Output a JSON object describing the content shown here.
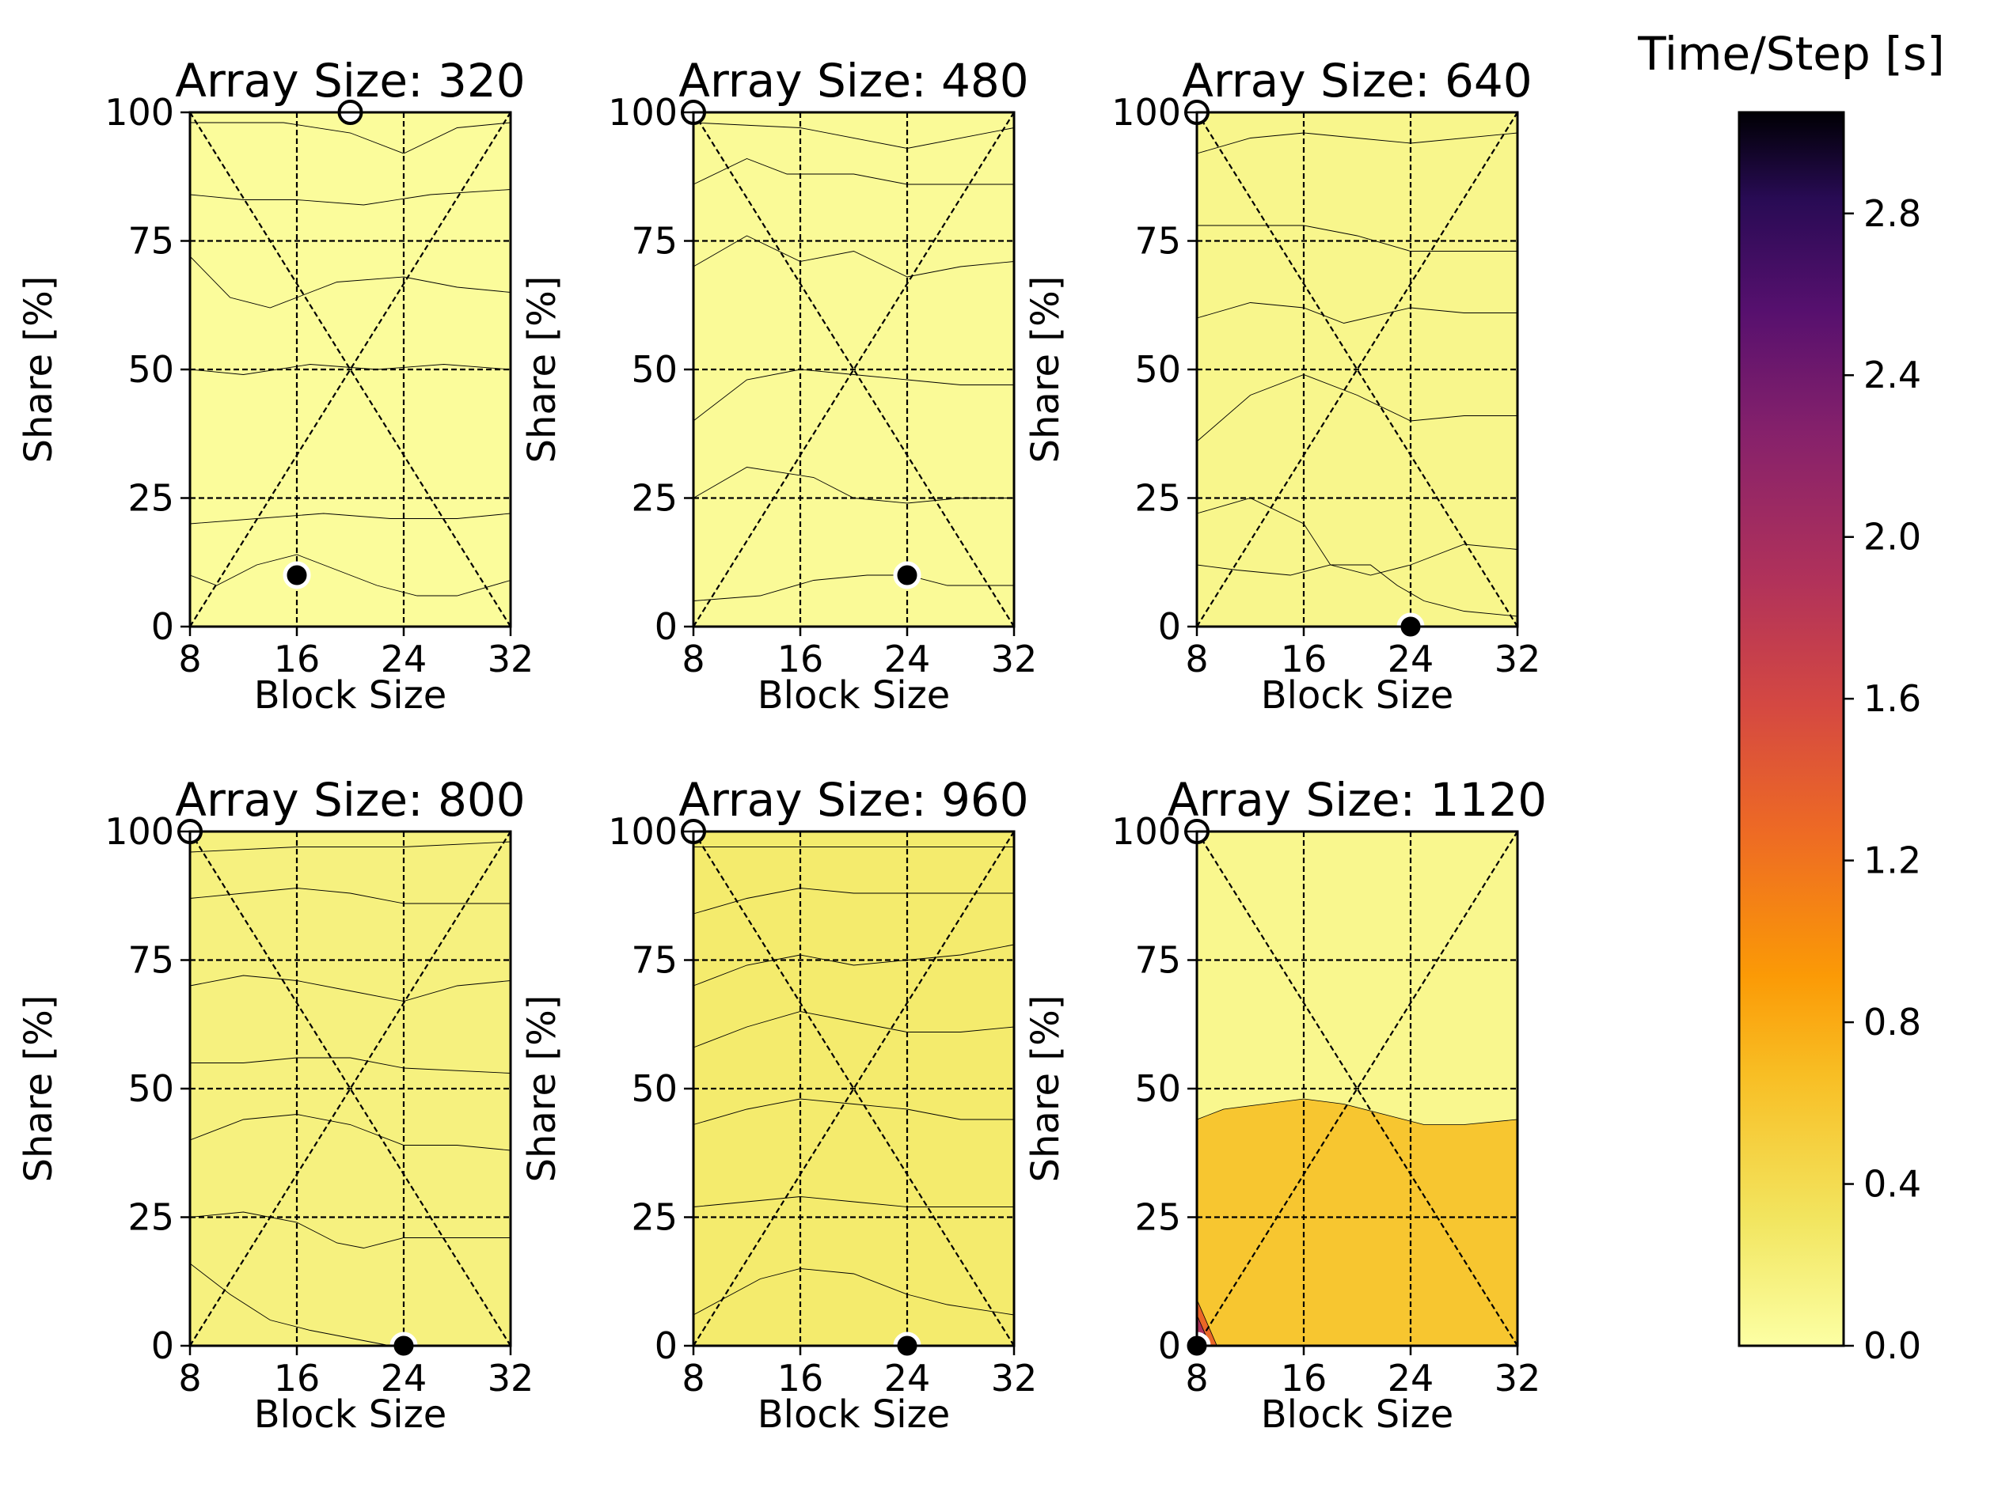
{
  "chart_data": {
    "type": "heatmap",
    "subtype": "contour",
    "colorbar": {
      "title": "Time/Step [s]",
      "colormap": "inferno_r",
      "range": [
        0.0,
        3.05
      ],
      "ticks": [
        0.0,
        0.4,
        0.8,
        1.2,
        1.6,
        2.0,
        2.4,
        2.8
      ],
      "tick_labels": [
        "0.0",
        "0.4",
        "0.8",
        "1.2",
        "1.6",
        "2.0",
        "2.4",
        "2.8"
      ]
    },
    "panels": [
      {
        "title": "Array Size: 320",
        "xlabel": "Block Size",
        "ylabel": "Share [%]",
        "xlim": [
          8,
          32
        ],
        "ylim": [
          0,
          100
        ],
        "xticks": [
          "8",
          "16",
          "24",
          "32"
        ],
        "yticks": [
          "0",
          "25",
          "50",
          "75",
          "100"
        ],
        "fill_value": 0.04,
        "level_curves": [
          [
            [
              8,
              10
            ],
            [
              10,
              8
            ],
            [
              13,
              12
            ],
            [
              16,
              14
            ],
            [
              19,
              11
            ],
            [
              22,
              8
            ],
            [
              25,
              6
            ],
            [
              28,
              6
            ],
            [
              32,
              9
            ]
          ],
          [
            [
              8,
              20
            ],
            [
              13,
              21
            ],
            [
              18,
              22
            ],
            [
              23,
              21
            ],
            [
              28,
              21
            ],
            [
              32,
              22
            ]
          ],
          [
            [
              8,
              50
            ],
            [
              12,
              49
            ],
            [
              17,
              51
            ],
            [
              22,
              50
            ],
            [
              27,
              51
            ],
            [
              32,
              50
            ]
          ],
          [
            [
              8,
              72
            ],
            [
              11,
              64
            ],
            [
              14,
              62
            ],
            [
              19,
              67
            ],
            [
              24,
              68
            ],
            [
              28,
              66
            ],
            [
              32,
              65
            ]
          ],
          [
            [
              8,
              84
            ],
            [
              12,
              83
            ],
            [
              16,
              83
            ],
            [
              21,
              82
            ],
            [
              26,
              84
            ],
            [
              32,
              85
            ]
          ],
          [
            [
              8,
              98
            ],
            [
              15,
              98
            ],
            [
              20,
              96
            ],
            [
              24,
              92
            ],
            [
              28,
              97
            ],
            [
              32,
              98
            ]
          ]
        ],
        "min_marker": {
          "block": 16,
          "share": 10
        },
        "max_marker": {
          "block": 20,
          "share": 100
        }
      },
      {
        "title": "Array Size: 480",
        "xlabel": "Block Size",
        "ylabel": "Share [%]",
        "xlim": [
          8,
          32
        ],
        "ylim": [
          0,
          100
        ],
        "xticks": [
          "8",
          "16",
          "24",
          "32"
        ],
        "yticks": [
          "0",
          "25",
          "50",
          "75",
          "100"
        ],
        "fill_value": 0.06,
        "level_curves": [
          [
            [
              8,
              5
            ],
            [
              13,
              6
            ],
            [
              17,
              9
            ],
            [
              21,
              10
            ],
            [
              24,
              10
            ],
            [
              27,
              8
            ],
            [
              32,
              8
            ]
          ],
          [
            [
              8,
              25
            ],
            [
              12,
              31
            ],
            [
              17,
              29
            ],
            [
              20,
              25
            ],
            [
              24,
              24
            ],
            [
              28,
              25
            ],
            [
              32,
              25
            ]
          ],
          [
            [
              8,
              40
            ],
            [
              12,
              48
            ],
            [
              16,
              50
            ],
            [
              20,
              49
            ],
            [
              24,
              48
            ],
            [
              28,
              47
            ],
            [
              32,
              47
            ]
          ],
          [
            [
              8,
              70
            ],
            [
              12,
              76
            ],
            [
              16,
              71
            ],
            [
              20,
              73
            ],
            [
              24,
              68
            ],
            [
              28,
              70
            ],
            [
              32,
              71
            ]
          ],
          [
            [
              8,
              86
            ],
            [
              12,
              91
            ],
            [
              15,
              88
            ],
            [
              20,
              88
            ],
            [
              24,
              86
            ],
            [
              32,
              86
            ]
          ],
          [
            [
              8,
              98
            ],
            [
              16,
              97
            ],
            [
              24,
              93
            ],
            [
              32,
              97
            ]
          ]
        ],
        "min_marker": {
          "block": 24,
          "share": 10
        },
        "max_marker": {
          "block": 8,
          "share": 100
        }
      },
      {
        "title": "Array Size: 640",
        "xlabel": "Block Size",
        "ylabel": "Share [%]",
        "xlim": [
          8,
          32
        ],
        "ylim": [
          0,
          100
        ],
        "xticks": [
          "8",
          "16",
          "24",
          "32"
        ],
        "yticks": [
          "0",
          "25",
          "50",
          "75",
          "100"
        ],
        "fill_value": 0.11,
        "level_curves": [
          [
            [
              8,
              12
            ],
            [
              11,
              11
            ],
            [
              15,
              10
            ],
            [
              18,
              12
            ],
            [
              21,
              12
            ],
            [
              23,
              8
            ],
            [
              25,
              5
            ],
            [
              28,
              3
            ],
            [
              32,
              2
            ]
          ],
          [
            [
              8,
              22
            ],
            [
              12,
              25
            ],
            [
              16,
              20
            ],
            [
              18,
              12
            ],
            [
              21,
              10
            ],
            [
              24,
              12
            ],
            [
              28,
              16
            ],
            [
              32,
              15
            ]
          ],
          [
            [
              8,
              36
            ],
            [
              12,
              45
            ],
            [
              16,
              49
            ],
            [
              20,
              45
            ],
            [
              24,
              40
            ],
            [
              28,
              41
            ],
            [
              32,
              41
            ]
          ],
          [
            [
              8,
              60
            ],
            [
              12,
              63
            ],
            [
              16,
              62
            ],
            [
              19,
              59
            ],
            [
              24,
              62
            ],
            [
              28,
              61
            ],
            [
              32,
              61
            ]
          ],
          [
            [
              8,
              78
            ],
            [
              12,
              78
            ],
            [
              16,
              78
            ],
            [
              20,
              76
            ],
            [
              24,
              73
            ],
            [
              32,
              73
            ]
          ],
          [
            [
              8,
              92
            ],
            [
              12,
              95
            ],
            [
              16,
              96
            ],
            [
              20,
              95
            ],
            [
              24,
              94
            ],
            [
              32,
              96
            ]
          ]
        ],
        "min_marker": {
          "block": 24,
          "share": 0
        },
        "max_marker": {
          "block": 8,
          "share": 100
        }
      },
      {
        "title": "Array Size: 800",
        "xlabel": "Block Size",
        "ylabel": "Share [%]",
        "xlim": [
          8,
          32
        ],
        "ylim": [
          0,
          100
        ],
        "xticks": [
          "8",
          "16",
          "24",
          "32"
        ],
        "yticks": [
          "0",
          "25",
          "50",
          "75",
          "100"
        ],
        "fill_value": 0.17,
        "level_curves": [
          [
            [
              8,
              16
            ],
            [
              11,
              10
            ],
            [
              14,
              5
            ],
            [
              17,
              3
            ],
            [
              21,
              1
            ],
            [
              23,
              0
            ]
          ],
          [
            [
              8,
              25
            ],
            [
              12,
              26
            ],
            [
              16,
              24
            ],
            [
              19,
              20
            ],
            [
              21,
              19
            ],
            [
              24,
              21
            ],
            [
              28,
              21
            ],
            [
              32,
              21
            ]
          ],
          [
            [
              8,
              40
            ],
            [
              12,
              44
            ],
            [
              16,
              45
            ],
            [
              20,
              43
            ],
            [
              24,
              39
            ],
            [
              28,
              39
            ],
            [
              32,
              38
            ]
          ],
          [
            [
              8,
              55
            ],
            [
              12,
              55
            ],
            [
              16,
              56
            ],
            [
              20,
              56
            ],
            [
              24,
              54
            ],
            [
              32,
              53
            ]
          ],
          [
            [
              8,
              70
            ],
            [
              12,
              72
            ],
            [
              16,
              71
            ],
            [
              20,
              69
            ],
            [
              24,
              67
            ],
            [
              28,
              70
            ],
            [
              32,
              71
            ]
          ],
          [
            [
              8,
              87
            ],
            [
              12,
              88
            ],
            [
              16,
              89
            ],
            [
              20,
              88
            ],
            [
              24,
              86
            ],
            [
              32,
              86
            ]
          ],
          [
            [
              8,
              96
            ],
            [
              16,
              97
            ],
            [
              24,
              97
            ],
            [
              32,
              98
            ]
          ]
        ],
        "min_marker": {
          "block": 24,
          "share": 0
        },
        "max_marker": {
          "block": 8,
          "share": 100
        }
      },
      {
        "title": "Array Size: 960",
        "xlabel": "Block Size",
        "ylabel": "Share [%]",
        "xlim": [
          8,
          32
        ],
        "ylim": [
          0,
          100
        ],
        "xticks": [
          "8",
          "16",
          "24",
          "32"
        ],
        "yticks": [
          "0",
          "25",
          "50",
          "75",
          "100"
        ],
        "fill_value": 0.25,
        "level_curves": [
          [
            [
              8,
              6
            ],
            [
              13,
              13
            ],
            [
              16,
              15
            ],
            [
              20,
              14
            ],
            [
              24,
              10
            ],
            [
              27,
              8
            ],
            [
              32,
              6
            ]
          ],
          [
            [
              8,
              27
            ],
            [
              12,
              28
            ],
            [
              16,
              29
            ],
            [
              20,
              28
            ],
            [
              24,
              27
            ],
            [
              28,
              27
            ],
            [
              32,
              27
            ]
          ],
          [
            [
              8,
              43
            ],
            [
              12,
              46
            ],
            [
              16,
              48
            ],
            [
              20,
              47
            ],
            [
              24,
              46
            ],
            [
              28,
              44
            ],
            [
              32,
              44
            ]
          ],
          [
            [
              8,
              58
            ],
            [
              12,
              62
            ],
            [
              16,
              65
            ],
            [
              20,
              63
            ],
            [
              24,
              61
            ],
            [
              28,
              61
            ],
            [
              32,
              62
            ]
          ],
          [
            [
              8,
              70
            ],
            [
              12,
              74
            ],
            [
              16,
              76
            ],
            [
              20,
              74
            ],
            [
              24,
              75
            ],
            [
              28,
              76
            ],
            [
              32,
              78
            ]
          ],
          [
            [
              8,
              84
            ],
            [
              12,
              87
            ],
            [
              16,
              89
            ],
            [
              20,
              88
            ],
            [
              24,
              88
            ],
            [
              28,
              88
            ],
            [
              32,
              88
            ]
          ],
          [
            [
              8,
              97
            ],
            [
              16,
              97
            ],
            [
              24,
              97
            ],
            [
              32,
              97
            ]
          ]
        ],
        "min_marker": {
          "block": 24,
          "share": 0
        },
        "max_marker": {
          "block": 8,
          "share": 100
        }
      },
      {
        "title": "Array Size: 1120",
        "xlabel": "Block Size",
        "ylabel": "Share [%]",
        "xlim": [
          8,
          32
        ],
        "ylim": [
          0,
          100
        ],
        "xticks": [
          "8",
          "16",
          "24",
          "32"
        ],
        "yticks": [
          "0",
          "25",
          "50",
          "75",
          "100"
        ],
        "fill_value": 0.1,
        "regions": [
          {
            "value": 0.6,
            "boundary": [
              [
                8,
                44
              ],
              [
                10,
                46
              ],
              [
                13,
                47
              ],
              [
                16,
                48
              ],
              [
                19,
                47
              ],
              [
                22,
                45
              ],
              [
                25,
                43
              ],
              [
                28,
                43
              ],
              [
                32,
                44
              ]
            ]
          },
          {
            "value": 1.3,
            "corner": "bottom-left",
            "size_block": 1.5,
            "size_share": 9
          },
          {
            "value": 1.9,
            "corner": "bottom-left",
            "size_block": 1.0,
            "size_share": 6
          },
          {
            "value": 2.6,
            "corner": "bottom-left",
            "size_block": 0.5,
            "size_share": 3
          }
        ],
        "level_curves": [],
        "min_marker": {
          "block": 8,
          "share": 0
        },
        "max_marker": {
          "block": 8,
          "share": 100
        }
      }
    ]
  }
}
